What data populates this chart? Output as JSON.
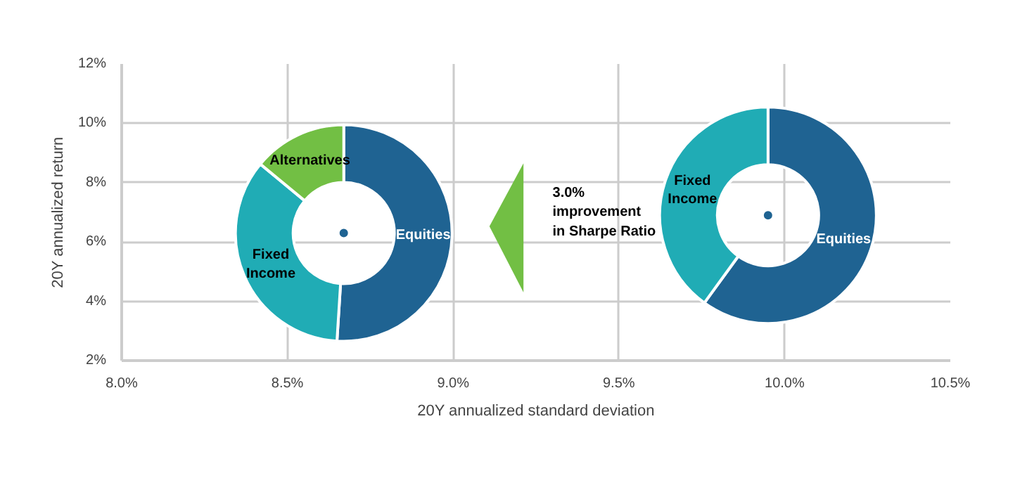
{
  "chart_data": [
    {
      "type": "scatter",
      "xlabel": "20Y annualized standard deviation",
      "ylabel": "20Y annualized return",
      "x": [
        8.67,
        9.95
      ],
      "values": [
        6.3,
        6.9
      ],
      "color": "#1f6392",
      "marker": "circle",
      "xlim": [
        8.0,
        10.5
      ],
      "xticks": [
        {
          "value": 8,
          "label": "8.0%"
        },
        {
          "value": 8.5,
          "label": "8.5%"
        },
        {
          "value": 9,
          "label": "9.0%"
        },
        {
          "value": 9.5,
          "label": "9.5%"
        },
        {
          "value": 10,
          "label": "10.0%"
        },
        {
          "value": 10.5,
          "label": "10.5%"
        }
      ],
      "ylim": [
        2,
        12
      ],
      "yticks": [
        {
          "value": 2,
          "label": "2%"
        },
        {
          "value": 4,
          "label": "4%"
        },
        {
          "value": 6,
          "label": "6%"
        },
        {
          "value": 8,
          "label": "8%"
        },
        {
          "value": 10,
          "label": "10%"
        },
        {
          "value": 12,
          "label": "12%"
        }
      ],
      "grid": true,
      "annotations": [
        "3.0%\nimprovement\nin Sharpe Ratio"
      ]
    },
    {
      "type": "donut",
      "categories": [
        "Equities",
        "Fixed\nIncome",
        "Alternatives"
      ],
      "values": [
        51,
        35,
        14
      ],
      "colors": [
        "#1f6392",
        "#20acb5",
        "#72bf44"
      ]
    },
    {
      "type": "donut",
      "categories": [
        "Equities",
        "Fixed\nIncome"
      ],
      "values": [
        60,
        40
      ],
      "colors": [
        "#1f6392",
        "#20acb5"
      ]
    }
  ]
}
